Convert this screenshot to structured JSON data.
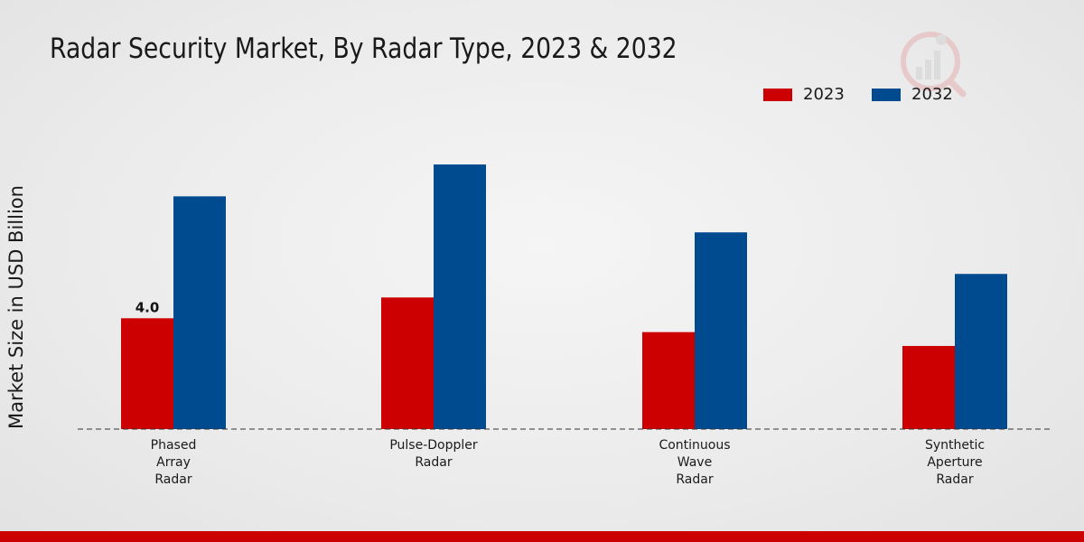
{
  "chart_data": {
    "type": "bar",
    "title": "Radar Security Market, By Radar Type, 2023 & 2032",
    "xlabel": "",
    "ylabel": "Market Size in USD Billion",
    "categories": [
      "Phased Array Radar",
      "Pulse-Doppler Radar",
      "Continuous Wave Radar",
      "Synthetic Aperture Radar"
    ],
    "category_lines": [
      [
        "Phased",
        "Array",
        "Radar"
      ],
      [
        "Pulse-Doppler",
        "Radar"
      ],
      [
        "Continuous",
        "Wave",
        "Radar"
      ],
      [
        "Synthetic",
        "Aperture",
        "Radar"
      ]
    ],
    "series": [
      {
        "name": "2023",
        "color": "#cc0000",
        "values": [
          4.0,
          4.75,
          3.5,
          3.0
        ]
      },
      {
        "name": "2032",
        "color": "#004a8f",
        "values": [
          8.4,
          9.55,
          7.1,
          5.6
        ]
      }
    ],
    "data_labels": [
      {
        "series": 0,
        "index": 0,
        "text": "4.0"
      }
    ],
    "ylim": [
      0,
      11.9
    ],
    "grid": false,
    "legend_position": "top-right"
  }
}
